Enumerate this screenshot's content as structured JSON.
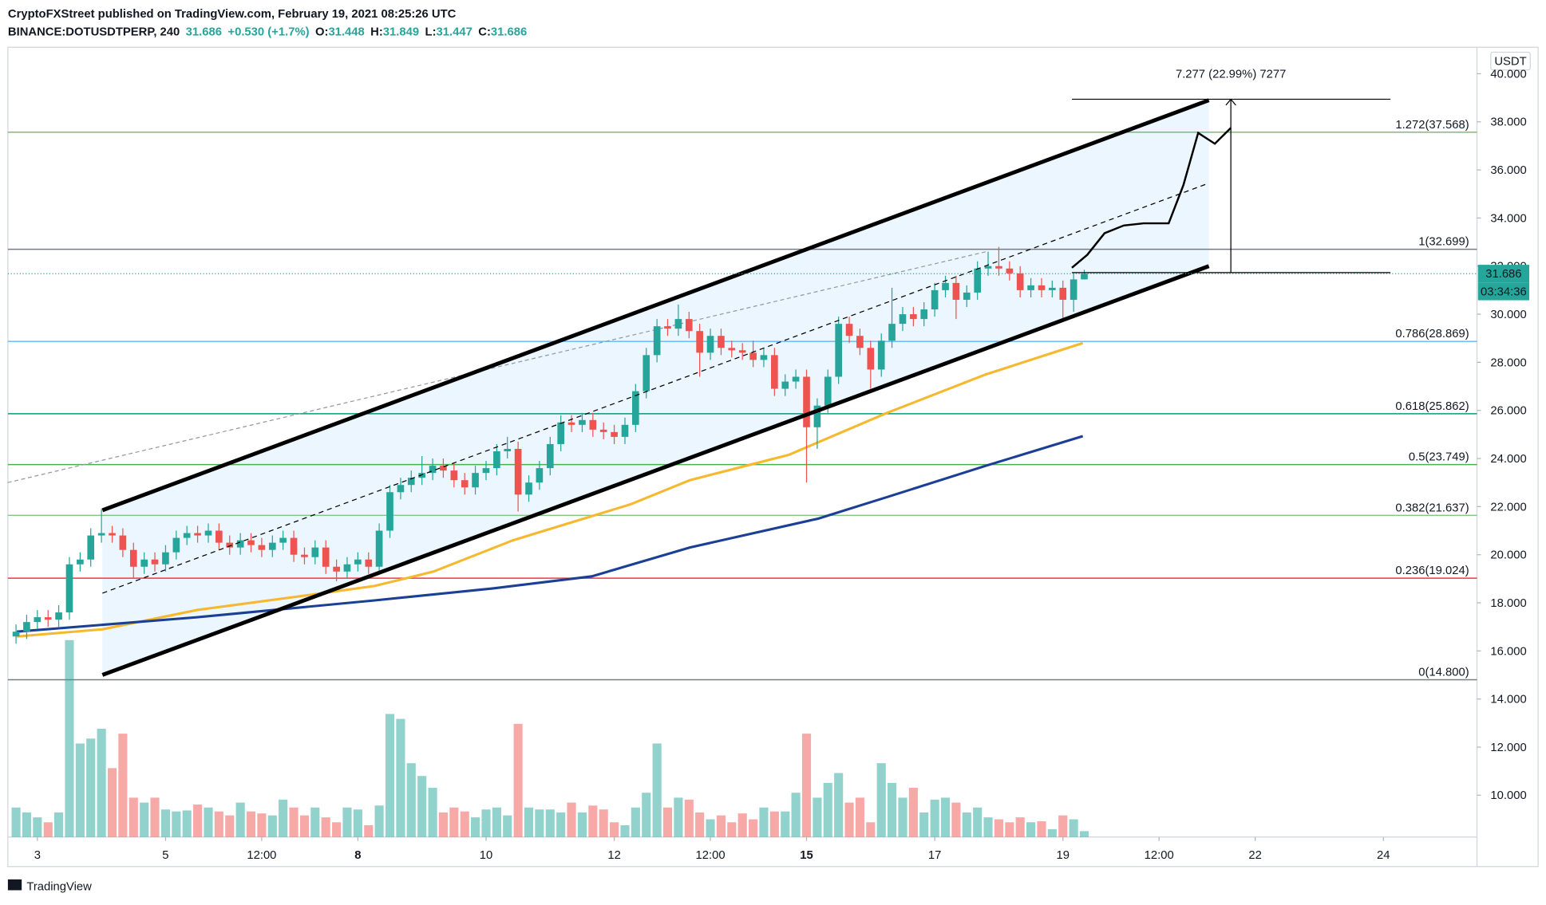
{
  "header": {
    "line1": "CryptoFXStreet published on TradingView.com, February 19, 2021 08:25:26 UTC",
    "symbol": "BINANCE:DOTUSDTPERP, 240",
    "last": 31.686,
    "change": "+0.530 (+1.7%)",
    "ohlc": [
      {
        "label": "O:",
        "value": 31.448
      },
      {
        "label": "H:",
        "value": 31.849
      },
      {
        "label": "L:",
        "value": 31.447
      },
      {
        "label": "C:",
        "value": 31.686
      }
    ]
  },
  "currency": "USDT",
  "countdown": "03:34:36",
  "footer": "TradingView",
  "chart_data": {
    "type": "candlestick",
    "xlim": [
      2.54,
      25.46
    ],
    "ylim": [
      8.26,
      41.1
    ],
    "xticks": [
      3,
      5,
      {
        "value": 6.5,
        "label": "12:00"
      },
      8,
      10,
      12,
      {
        "value": 13.5,
        "label": "12:00"
      },
      15,
      17,
      19,
      {
        "value": 20.5,
        "label": "12:00"
      },
      22,
      24
    ],
    "bold_xticks": [
      8,
      15
    ],
    "yticks": [
      {
        "value": 10,
        "label": "10.000"
      },
      {
        "value": 12,
        "label": "12.000"
      },
      {
        "value": 14,
        "label": "14.000"
      },
      {
        "value": 16,
        "label": "16.000"
      },
      {
        "value": 18,
        "label": "18.000"
      },
      {
        "value": 20,
        "label": "20.000"
      },
      {
        "value": 22,
        "label": "22.000"
      },
      {
        "value": 24,
        "label": "24.000"
      },
      {
        "value": 26,
        "label": "26.000"
      },
      {
        "value": 28,
        "label": "28.000"
      },
      {
        "value": 30,
        "label": "30.000"
      },
      {
        "value": 32,
        "label": "32.000"
      },
      {
        "value": 34,
        "label": "34.000"
      },
      {
        "value": 36,
        "label": "36.000"
      },
      {
        "value": 38,
        "label": "38.000"
      },
      {
        "value": 40,
        "label": "40.000"
      }
    ],
    "up_color": "#26a69a",
    "down_color": "#ef5350",
    "x": [
      2.667,
      2.833,
      3,
      3.167,
      3.333,
      3.5,
      3.667,
      3.833,
      4,
      4.167,
      4.333,
      4.5,
      4.667,
      4.833,
      5,
      5.167,
      5.333,
      5.5,
      5.667,
      5.833,
      6,
      6.167,
      6.333,
      6.5,
      6.667,
      6.833,
      7,
      7.167,
      7.333,
      7.5,
      7.667,
      7.833,
      8,
      8.167,
      8.333,
      8.5,
      8.667,
      8.833,
      9,
      9.167,
      9.333,
      9.5,
      9.667,
      9.833,
      10,
      10.167,
      10.333,
      10.5,
      10.667,
      10.833,
      11,
      11.167,
      11.333,
      11.5,
      11.667,
      11.833,
      12,
      12.167,
      12.333,
      12.5,
      12.667,
      12.833,
      13,
      13.167,
      13.333,
      13.5,
      13.667,
      13.833,
      14,
      14.167,
      14.333,
      14.5,
      14.667,
      14.833,
      15,
      15.167,
      15.333,
      15.5,
      15.667,
      15.833,
      16,
      16.167,
      16.333,
      16.5,
      16.667,
      16.833,
      17,
      17.167,
      17.333,
      17.5,
      17.667,
      17.833,
      18,
      18.167,
      18.333,
      18.5,
      18.667,
      18.833,
      19,
      19.167,
      19.333
    ],
    "open": [
      16.6,
      16.8,
      17.2,
      17.4,
      17.3,
      17.6,
      19.6,
      19.8,
      20.8,
      20.9,
      20.8,
      20.2,
      19.5,
      19.8,
      19.6,
      20.1,
      20.7,
      20.9,
      20.8,
      21.0,
      20.5,
      20.3,
      20.6,
      20.4,
      20.2,
      20.5,
      20.7,
      20.0,
      19.9,
      20.3,
      19.5,
      19.3,
      19.6,
      19.8,
      19.5,
      21.0,
      22.6,
      22.9,
      23.2,
      23.4,
      23.7,
      23.5,
      23.1,
      22.8,
      23.4,
      23.6,
      24.3,
      24.4,
      22.5,
      23.0,
      23.6,
      24.6,
      25.5,
      25.4,
      25.6,
      25.2,
      25.1,
      24.9,
      25.4,
      26.8,
      28.3,
      29.5,
      29.4,
      29.8,
      29.3,
      28.4,
      29.1,
      28.6,
      28.5,
      28.4,
      28.1,
      28.3,
      26.9,
      27.2,
      27.4,
      25.3,
      26.2,
      27.4,
      29.6,
      29.1,
      28.6,
      27.7,
      28.9,
      29.6,
      30.0,
      29.8,
      30.2,
      31.0,
      31.3,
      30.6,
      30.9,
      31.9,
      32.0,
      31.9,
      31.7,
      31.0,
      31.2,
      31.0,
      31.1,
      30.6,
      31.448
    ],
    "high": [
      17.1,
      17.5,
      17.7,
      17.7,
      17.9,
      19.9,
      20.1,
      21.1,
      21.9,
      21.2,
      21.1,
      20.5,
      20.1,
      20.1,
      20.4,
      21.0,
      21.2,
      21.2,
      21.3,
      21.3,
      20.8,
      20.9,
      20.9,
      20.7,
      20.8,
      21.0,
      21.0,
      20.3,
      20.6,
      20.6,
      19.8,
      19.9,
      20.1,
      20.1,
      21.3,
      22.9,
      23.2,
      23.5,
      24.1,
      24.0,
      24.0,
      23.8,
      23.4,
      23.7,
      23.9,
      24.6,
      24.9,
      24.7,
      23.3,
      23.9,
      24.9,
      25.8,
      25.8,
      25.9,
      25.9,
      25.5,
      25.4,
      25.7,
      27.1,
      28.6,
      29.8,
      29.8,
      30.4,
      30.1,
      29.6,
      29.4,
      29.4,
      28.9,
      28.8,
      28.9,
      28.6,
      28.6,
      27.5,
      27.7,
      27.7,
      26.5,
      27.7,
      29.9,
      29.9,
      29.4,
      28.9,
      29.2,
      31.1,
      30.3,
      30.3,
      30.5,
      31.3,
      31.6,
      31.6,
      31.2,
      32.2,
      32.6,
      32.8,
      32.2,
      32.0,
      31.5,
      31.5,
      31.4,
      31.4,
      31.7,
      31.849
    ],
    "low": [
      16.3,
      16.5,
      16.9,
      17.0,
      17.0,
      17.3,
      19.3,
      19.5,
      20.5,
      20.5,
      19.9,
      19.0,
      19.2,
      19.3,
      19.3,
      19.8,
      20.4,
      20.5,
      20.5,
      20.2,
      20.0,
      20.0,
      20.1,
      19.9,
      19.9,
      20.2,
      19.7,
      19.6,
      19.6,
      19.2,
      18.9,
      19.0,
      19.3,
      19.2,
      19.2,
      20.7,
      22.3,
      22.6,
      22.9,
      23.1,
      23.2,
      22.8,
      22.5,
      22.5,
      23.1,
      23.3,
      24.0,
      21.8,
      22.2,
      22.7,
      23.3,
      24.3,
      25.1,
      25.1,
      24.9,
      24.8,
      24.6,
      24.6,
      25.1,
      26.5,
      28.0,
      29.1,
      29.1,
      29.0,
      27.4,
      28.1,
      28.3,
      28.2,
      28.1,
      27.8,
      27.8,
      26.6,
      26.6,
      26.9,
      23.0,
      24.4,
      25.9,
      27.1,
      28.8,
      28.3,
      26.9,
      27.4,
      28.6,
      29.3,
      29.5,
      29.5,
      29.9,
      30.7,
      29.8,
      30.3,
      30.6,
      31.6,
      31.6,
      31.4,
      30.7,
      30.7,
      30.7,
      30.7,
      29.8,
      30.1,
      31.447
    ],
    "close": [
      16.8,
      17.2,
      17.4,
      17.3,
      17.6,
      19.6,
      19.8,
      20.8,
      20.9,
      20.8,
      20.2,
      19.5,
      19.8,
      19.6,
      20.1,
      20.7,
      20.9,
      20.8,
      21.0,
      20.5,
      20.3,
      20.6,
      20.4,
      20.2,
      20.5,
      20.7,
      20.0,
      19.9,
      20.3,
      19.5,
      19.3,
      19.6,
      19.8,
      19.5,
      21.0,
      22.6,
      22.9,
      23.2,
      23.4,
      23.7,
      23.5,
      23.1,
      22.8,
      23.4,
      23.6,
      24.3,
      24.4,
      22.5,
      23.0,
      23.6,
      24.6,
      25.5,
      25.4,
      25.6,
      25.2,
      25.1,
      24.9,
      25.4,
      26.8,
      28.3,
      29.5,
      29.4,
      29.8,
      29.3,
      28.4,
      29.1,
      28.6,
      28.5,
      28.4,
      28.1,
      28.3,
      26.9,
      27.2,
      27.4,
      25.3,
      26.2,
      27.4,
      29.6,
      29.1,
      28.6,
      27.7,
      28.9,
      29.6,
      30.0,
      29.8,
      30.2,
      31.0,
      31.3,
      30.6,
      30.9,
      31.9,
      32.0,
      31.9,
      31.7,
      31.0,
      31.2,
      31.0,
      31.1,
      30.6,
      31.448,
      31.686
    ],
    "volume": [
      30,
      25,
      20,
      15,
      25,
      200,
      95,
      100,
      110,
      70,
      105,
      40,
      35,
      40,
      28,
      26,
      27,
      33,
      30,
      26,
      22,
      35,
      26,
      24,
      22,
      38,
      30,
      22,
      30,
      20,
      15,
      30,
      28,
      12,
      32,
      125,
      120,
      75,
      62,
      50,
      25,
      30,
      26,
      20,
      28,
      30,
      22,
      115,
      30,
      28,
      28,
      25,
      35,
      25,
      32,
      28,
      15,
      12,
      30,
      45,
      95,
      30,
      40,
      38,
      25,
      18,
      22,
      15,
      24,
      18,
      30,
      26,
      26,
      45,
      105,
      40,
      55,
      65,
      35,
      40,
      15,
      75,
      55,
      40,
      50,
      25,
      38,
      40,
      35,
      25,
      30,
      20,
      18,
      15,
      20,
      15,
      16,
      8,
      22,
      18,
      6
    ],
    "volume_lim": [
      0,
      200
    ],
    "series": [
      {
        "color": "#f5b82e",
        "x": [
          2.68,
          4.02,
          5.49,
          7.03,
          8.26,
          9.18,
          10.42,
          12.26,
          13.18,
          14.72,
          16.26,
          17.8,
          19.31
        ],
        "values": [
          16.6,
          16.9,
          17.7,
          18.25,
          18.7,
          19.3,
          20.6,
          22.1,
          23.1,
          24.15,
          25.9,
          27.5,
          28.8
        ]
      },
      {
        "color": "#1b3f94",
        "x": [
          2.68,
          5.49,
          8.26,
          10.11,
          11.65,
          13.18,
          15.18,
          16.26,
          17.8,
          19.31
        ],
        "values": [
          16.8,
          17.4,
          18.1,
          18.6,
          19.1,
          20.3,
          21.5,
          22.4,
          23.7,
          24.93
        ]
      }
    ],
    "fib": [
      {
        "text": "1.272(37.568)",
        "value": 37.568,
        "color": "#66bb6a"
      },
      {
        "text": "1(32.699)",
        "value": 32.699,
        "color": "#787b86"
      },
      {
        "text": "0.786(28.869)",
        "value": 28.869,
        "color": "#64b5f6"
      },
      {
        "text": "0.618(25.862)",
        "value": 25.862,
        "color": "#089981"
      },
      {
        "text": "0.5(23.749)",
        "value": 23.749,
        "color": "#4caf50"
      },
      {
        "text": "0.382(21.637)",
        "value": 21.637,
        "color": "#81c784"
      },
      {
        "text": "0.236(19.024)",
        "value": 19.024,
        "color": "#f23645"
      },
      {
        "text": "0(14.800)",
        "value": 14.8,
        "color": "#787b86"
      }
    ],
    "channel": {
      "upper": {
        "x": [
          4.015,
          21.277
        ],
        "values": [
          21.85,
          38.9
        ]
      },
      "lower": {
        "x": [
          4.015,
          21.277
        ],
        "values": [
          15.0,
          32.0
        ]
      },
      "middle": {
        "x": [
          4.015,
          21.277
        ],
        "values": [
          18.4,
          35.45
        ]
      },
      "fill": "rgba(33,150,243,0.09)"
    },
    "trend": {
      "x": [
        2.538,
        17.8
      ],
      "values": [
        23.0,
        32.6
      ]
    },
    "projection": {
      "x": [
        19.14,
        19.38,
        19.65,
        19.95,
        20.26,
        20.65,
        20.88,
        21.11,
        21.37,
        21.62
      ],
      "values": [
        31.93,
        32.47,
        33.37,
        33.69,
        33.78,
        33.78,
        35.37,
        37.54,
        37.09,
        37.75
      ]
    },
    "measure": {
      "text": "7.277 (22.99%) 7277",
      "x": [
        19.14,
        24.11
      ],
      "arrow_x": 21.62,
      "values": [
        31.73,
        38.94
      ]
    }
  }
}
